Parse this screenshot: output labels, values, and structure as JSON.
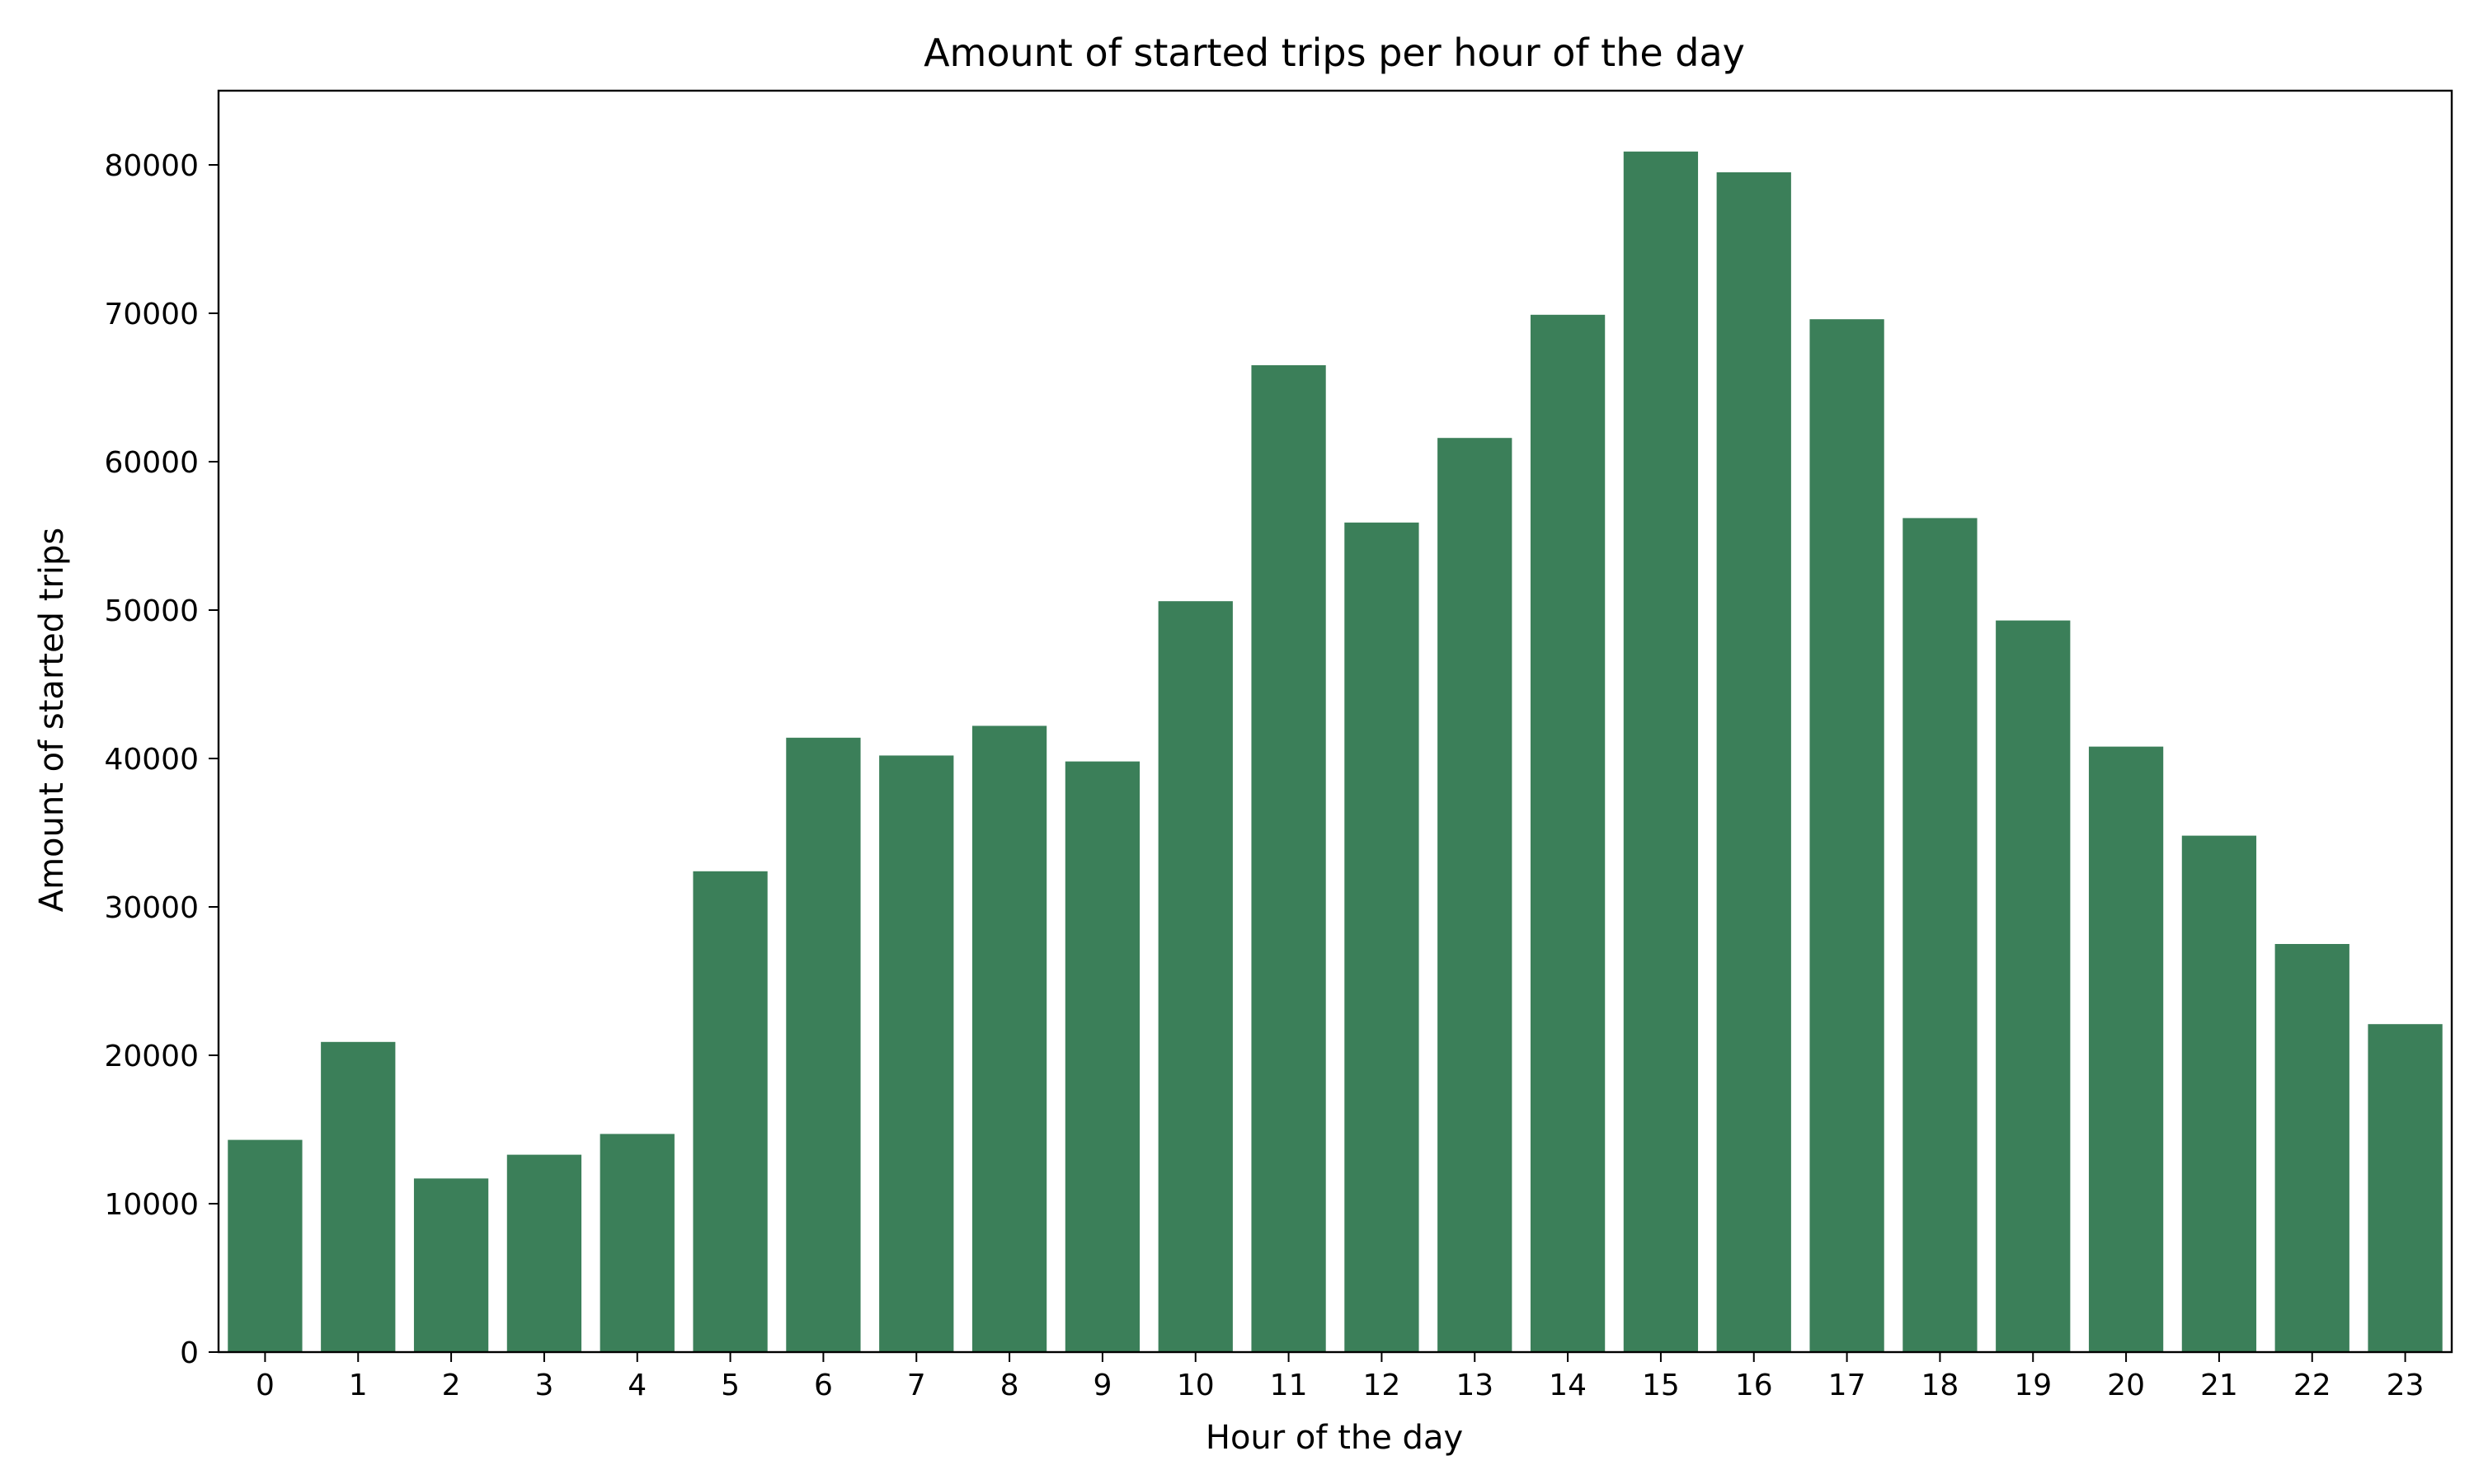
{
  "chart_data": {
    "type": "bar",
    "title": "Amount of started trips per hour of the day",
    "xlabel": "Hour of the day",
    "ylabel": "Amount of started trips",
    "categories": [
      "0",
      "1",
      "2",
      "3",
      "4",
      "5",
      "6",
      "7",
      "8",
      "9",
      "10",
      "11",
      "12",
      "13",
      "14",
      "15",
      "16",
      "17",
      "18",
      "19",
      "20",
      "21",
      "22",
      "23"
    ],
    "values": [
      14300,
      20900,
      11700,
      13300,
      14700,
      32400,
      41400,
      40200,
      42200,
      39800,
      50600,
      66500,
      55900,
      61600,
      69900,
      80900,
      79500,
      69600,
      56200,
      49300,
      40800,
      34800,
      27500,
      22100
    ],
    "ylim": [
      0,
      85000
    ],
    "yticks": [
      "0",
      "10000",
      "20000",
      "30000",
      "40000",
      "50000",
      "60000",
      "70000",
      "80000"
    ],
    "grid": false,
    "bar_color": "#3b7f59"
  }
}
